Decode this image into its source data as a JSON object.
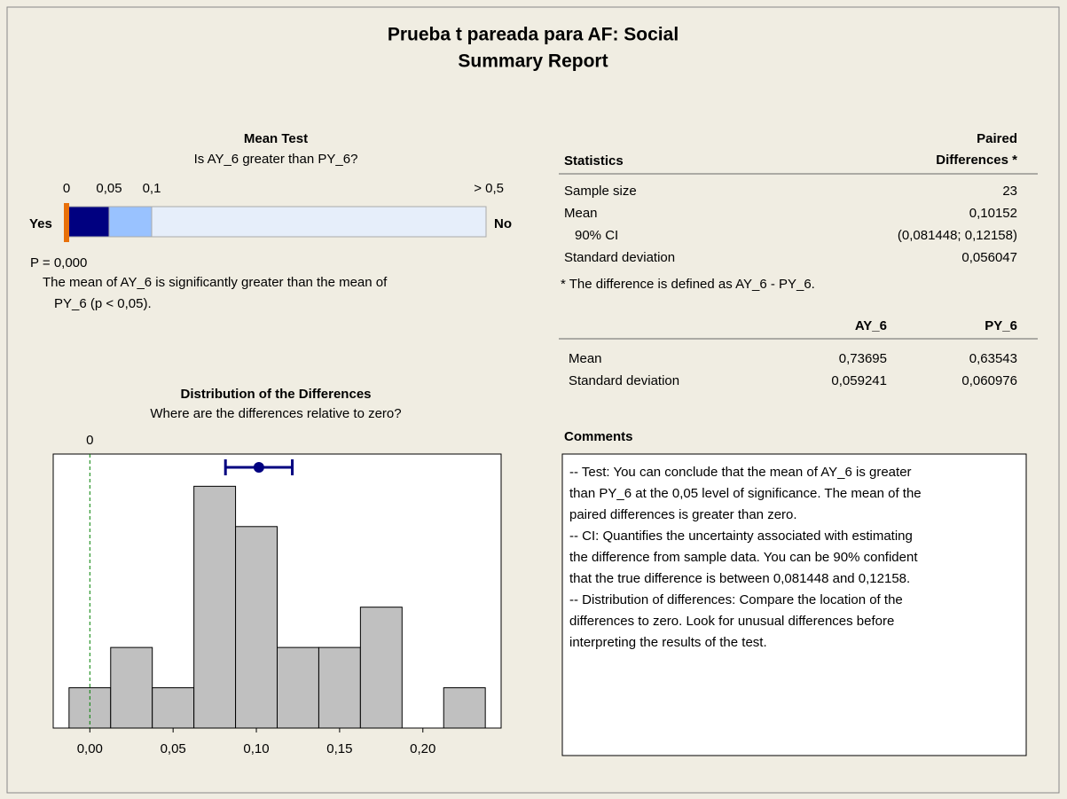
{
  "title": "Prueba t pareada para AF: Social",
  "subtitle": "Summary Report",
  "mean_test": {
    "title": "Mean Test",
    "question": "Is AY_6 greater than PY_6?",
    "scale": [
      0,
      {
        "value": 0.05,
        "label": "0,05"
      },
      {
        "value": 0.1,
        "label": "0,1"
      },
      {
        "value": 0.5,
        "label": "> 0,5"
      }
    ],
    "yes": "Yes",
    "no": "No",
    "p_value": 0,
    "p_label": "P = 0,000",
    "conclusion": [
      "The mean of AY_6 is significantly greater than the mean of",
      "PY_6 (p < 0,05)."
    ]
  },
  "chart_data": {
    "type": "histogram",
    "title": "Distribution of the Differences",
    "subtitle": "Where are the differences relative to zero?",
    "bins": [
      -0.0125,
      0.0125,
      0.0375,
      0.0625,
      0.0875,
      0.1125,
      0.1375,
      0.1625,
      0.1875,
      0.2125,
      0.2375
    ],
    "values": [
      1,
      2,
      1,
      6,
      5,
      2,
      2,
      3,
      0,
      1
    ],
    "color": "#c0c0c0",
    "xlim": [
      -0.022,
      0.247
    ],
    "ylim": [
      0,
      6.8
    ],
    "xticks": [
      {
        "value": 0,
        "label": "0,00"
      },
      {
        "value": 0.05,
        "label": "0,05"
      },
      {
        "value": 0.1,
        "label": "0,10"
      },
      {
        "value": 0.15,
        "label": "0,15"
      },
      {
        "value": 0.2,
        "label": "0,20"
      }
    ],
    "reference_line": {
      "value": 0,
      "color": "#008000"
    },
    "interval": {
      "low": 0.081448,
      "mean": 0.10152,
      "high": 0.12158,
      "color": "#000080"
    }
  },
  "statistics": {
    "header": "Statistics",
    "column": [
      "Paired",
      "Differences *"
    ],
    "rows": [
      [
        "Sample size",
        "23"
      ],
      [
        "Mean",
        "0,10152"
      ],
      [
        "90% CI",
        "(0,081448; 0,12158)"
      ],
      [
        "Standard deviation",
        "0,056047"
      ]
    ],
    "footnote": "* The difference is defined as AY_6 - PY_6.",
    "samples": {
      "columns": [
        "AY_6",
        "PY_6"
      ],
      "rows": [
        [
          "Mean",
          "0,73695",
          "0,63543"
        ],
        [
          "Standard deviation",
          "0,059241",
          "0,060976"
        ]
      ]
    }
  },
  "comments": {
    "title": "Comments",
    "lines": [
      "-- Test: You can conclude that the mean of AY_6 is greater",
      "than PY_6 at the 0,05 level of significance. The mean of the",
      "paired differences is greater than zero.",
      "-- CI: Quantifies the uncertainty associated with estimating",
      "the difference from sample data. You can be 90% confident",
      "that the true difference is between 0,081448 and 0,12158.",
      "-- Distribution of differences: Compare the location of the",
      "differences to zero. Look for unusual differences before",
      "interpreting the results of the test."
    ]
  }
}
